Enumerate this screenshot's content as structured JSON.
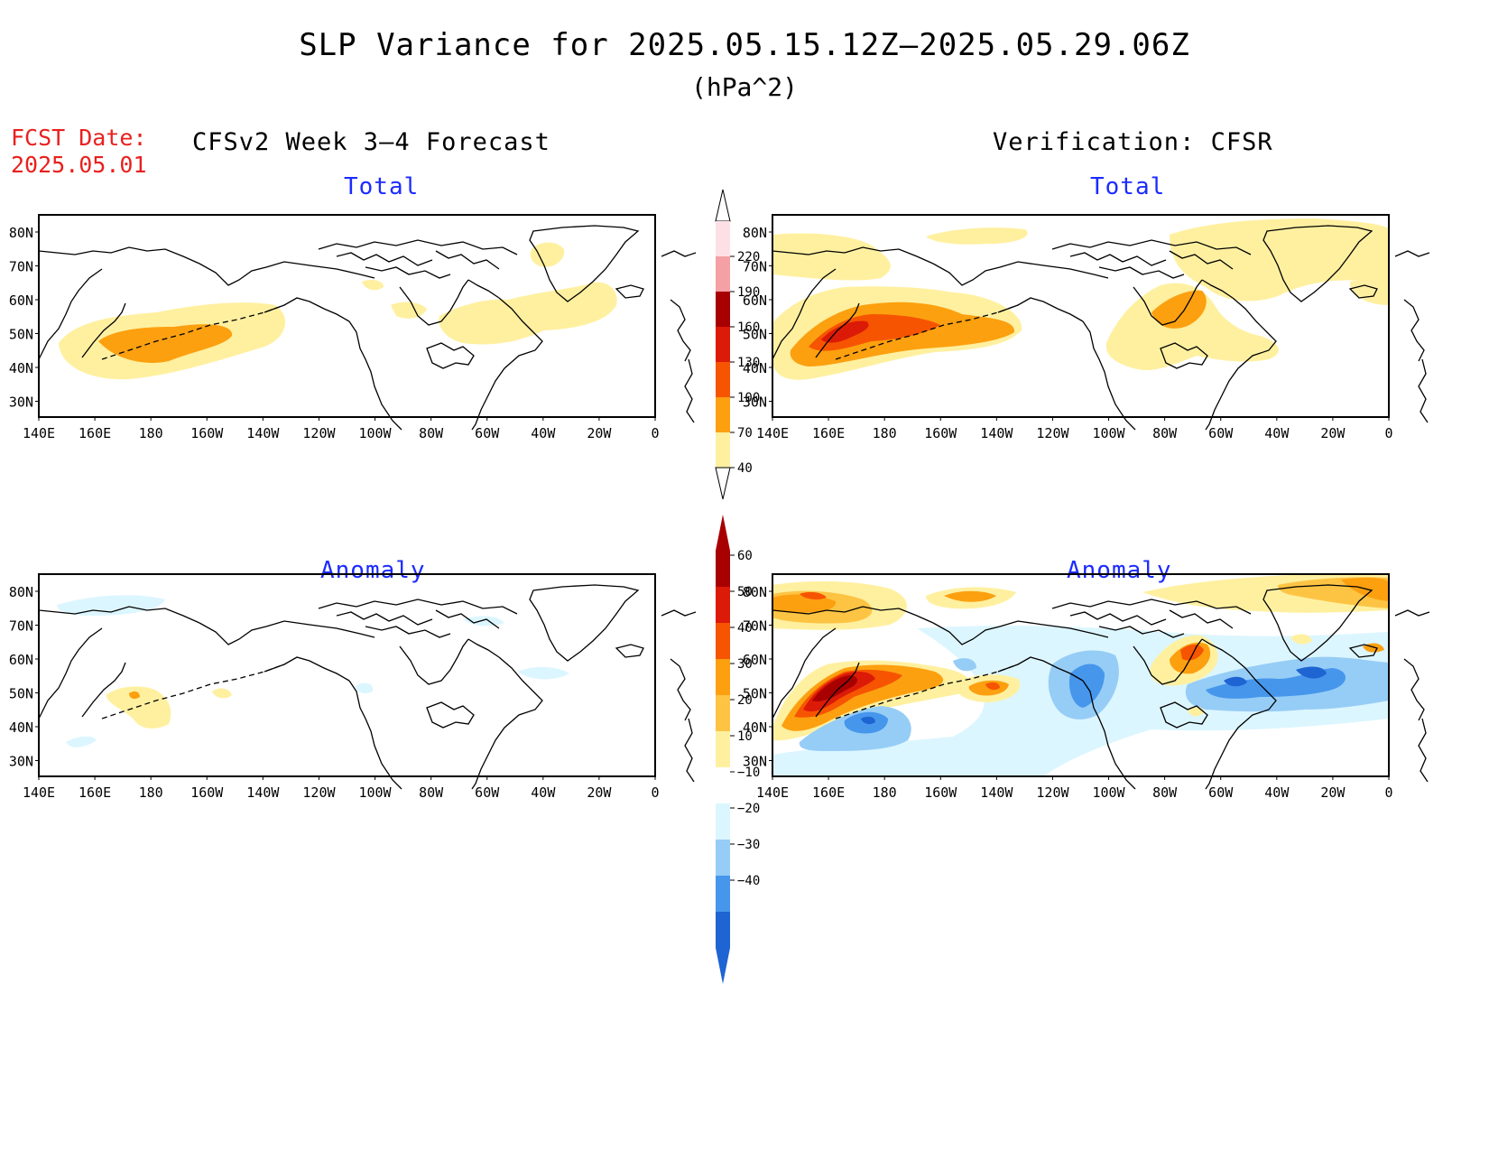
{
  "title": "SLP Variance for 2025.05.15.12Z–2025.05.29.06Z",
  "units": "(hPa^2)",
  "fcst_date": {
    "label": "FCST Date:",
    "value": "2025.05.01"
  },
  "left_header": "CFSv2 Week 3–4 Forecast",
  "right_header": "Verification: CFSR",
  "panels": [
    {
      "id": "fcst-total",
      "title": "Total"
    },
    {
      "id": "verif-total",
      "title": "Total"
    },
    {
      "id": "fcst-anomaly",
      "title": "Anomaly"
    },
    {
      "id": "verif-anomaly",
      "title": "Anomaly"
    }
  ],
  "lat_labels": [
    "80N",
    "70N",
    "60N",
    "50N",
    "40N",
    "30N"
  ],
  "lon_labels": [
    "140E",
    "160E",
    "180",
    "160W",
    "140W",
    "120W",
    "100W",
    "80W",
    "60W",
    "40W",
    "20W",
    "0"
  ],
  "total_colorbar": {
    "labels": [
      "220",
      "190",
      "160",
      "130",
      "100",
      "70",
      "40"
    ],
    "colors": [
      "#fde0e6",
      "#f4a0a4",
      "#a80000",
      "#dc1a08",
      "#f65400",
      "#fca010",
      "#fff0a0"
    ]
  },
  "anomaly_colorbar": {
    "labels": [
      "60",
      "50",
      "40",
      "30",
      "20",
      "10",
      "−10",
      "−20",
      "−30",
      "−40"
    ],
    "colors": [
      "#a80000",
      "#dc1a08",
      "#f65400",
      "#fca010",
      "#fdc444",
      "#fff0a0",
      "#ffffff",
      "#dcf6ff",
      "#96cdf6",
      "#4696ec",
      "#1e64d2"
    ]
  },
  "colors": {
    "title": "#000000",
    "panel_title": "#1c2bff",
    "fcst_date": "#e8201e"
  }
}
